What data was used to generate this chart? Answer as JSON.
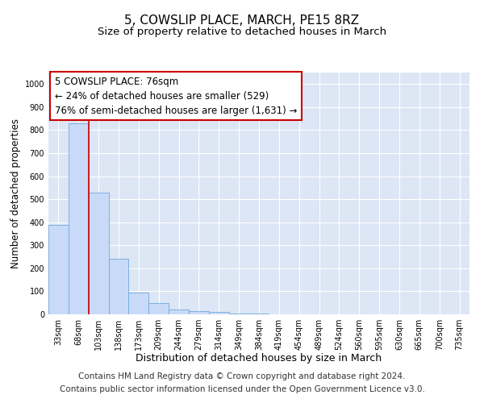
{
  "title": "5, COWSLIP PLACE, MARCH, PE15 8RZ",
  "subtitle": "Size of property relative to detached houses in March",
  "xlabel": "Distribution of detached houses by size in March",
  "ylabel": "Number of detached properties",
  "categories": [
    "33sqm",
    "68sqm",
    "103sqm",
    "138sqm",
    "173sqm",
    "209sqm",
    "244sqm",
    "279sqm",
    "314sqm",
    "349sqm",
    "384sqm",
    "419sqm",
    "454sqm",
    "489sqm",
    "524sqm",
    "560sqm",
    "595sqm",
    "630sqm",
    "665sqm",
    "700sqm",
    "735sqm"
  ],
  "values": [
    390,
    830,
    530,
    240,
    95,
    50,
    20,
    15,
    10,
    5,
    3,
    0,
    0,
    0,
    0,
    0,
    0,
    0,
    0,
    0,
    0
  ],
  "bar_color": "#c9daf8",
  "bar_edge_color": "#6fa8dc",
  "vline_color": "#cc0000",
  "annotation_text": "5 COWSLIP PLACE: 76sqm\n← 24% of detached houses are smaller (529)\n76% of semi-detached houses are larger (1,631) →",
  "annotation_box_color": "#ffffff",
  "annotation_box_edge_color": "#cc0000",
  "ylim": [
    0,
    1050
  ],
  "yticks": [
    0,
    100,
    200,
    300,
    400,
    500,
    600,
    700,
    800,
    900,
    1000
  ],
  "footer1": "Contains HM Land Registry data © Crown copyright and database right 2024.",
  "footer2": "Contains public sector information licensed under the Open Government Licence v3.0.",
  "background_color": "#ffffff",
  "plot_background_color": "#dce6f5",
  "grid_color": "#ffffff",
  "title_fontsize": 11,
  "subtitle_fontsize": 9.5,
  "xlabel_fontsize": 9,
  "ylabel_fontsize": 8.5,
  "tick_fontsize": 7,
  "annotation_fontsize": 8.5,
  "footer_fontsize": 7.5
}
